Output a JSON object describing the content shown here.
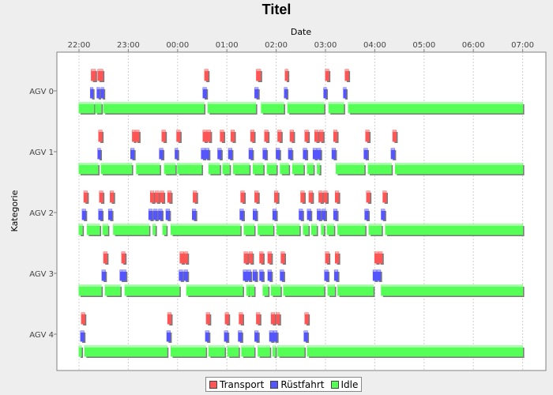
{
  "chart_data": {
    "type": "gantt",
    "title": "Titel",
    "xlabel": "Date",
    "ylabel": "Kategorie",
    "x_ticks": [
      "22:00",
      "23:00",
      "00:00",
      "01:00",
      "02:00",
      "03:00",
      "04:00",
      "05:00",
      "06:00",
      "07:00"
    ],
    "x_range": [
      "21:30",
      "07:30"
    ],
    "categories": [
      "AGV 0",
      "AGV 1",
      "AGV 2",
      "AGV 3",
      "AGV 4"
    ],
    "grid": true,
    "legend_position": "bottom",
    "series": [
      {
        "name": "Transport",
        "color": "#ff5555",
        "tasks": [
          {
            "category": "AGV 0",
            "intervals": [
              [
                "22:15",
                "22:20"
              ],
              [
                "22:23",
                "22:29"
              ],
              [
                "00:33",
                "00:37"
              ],
              [
                "01:36",
                "01:41"
              ],
              [
                "02:11",
                "02:14"
              ],
              [
                "03:00",
                "03:04"
              ],
              [
                "03:24",
                "03:28"
              ]
            ]
          },
          {
            "category": "AGV 1",
            "intervals": [
              [
                "22:24",
                "22:28"
              ],
              [
                "23:05",
                "23:08"
              ],
              [
                "23:09",
                "23:13"
              ],
              [
                "23:41",
                "23:45"
              ],
              [
                "23:59",
                "00:03"
              ],
              [
                "00:31",
                "00:35"
              ],
              [
                "00:36",
                "00:40"
              ],
              [
                "00:52",
                "00:56"
              ],
              [
                "01:05",
                "01:09"
              ],
              [
                "01:29",
                "01:33"
              ],
              [
                "01:46",
                "01:50"
              ],
              [
                "02:02",
                "02:06"
              ],
              [
                "02:17",
                "02:21"
              ],
              [
                "02:35",
                "02:39"
              ],
              [
                "02:47",
                "02:51"
              ],
              [
                "02:53",
                "02:57"
              ],
              [
                "03:10",
                "03:14"
              ],
              [
                "03:49",
                "03:53"
              ],
              [
                "04:22",
                "04:26"
              ]
            ]
          },
          {
            "category": "AGV 2",
            "intervals": [
              [
                "22:06",
                "22:10"
              ],
              [
                "22:25",
                "22:29"
              ],
              [
                "22:38",
                "22:42"
              ],
              [
                "23:27",
                "23:31"
              ],
              [
                "23:33",
                "23:37"
              ],
              [
                "23:39",
                "23:43"
              ],
              [
                "23:48",
                "23:52"
              ],
              [
                "00:19",
                "00:23"
              ],
              [
                "01:17",
                "01:21"
              ],
              [
                "01:34",
                "01:38"
              ],
              [
                "01:58",
                "02:02"
              ],
              [
                "02:30",
                "02:34"
              ],
              [
                "02:40",
                "02:44"
              ],
              [
                "02:52",
                "02:56"
              ],
              [
                "02:58",
                "03:02"
              ],
              [
                "03:12",
                "03:16"
              ],
              [
                "03:50",
                "03:54"
              ],
              [
                "04:10",
                "04:14"
              ]
            ]
          },
          {
            "category": "AGV 3",
            "intervals": [
              [
                "22:30",
                "22:34"
              ],
              [
                "22:52",
                "22:56"
              ],
              [
                "00:03",
                "00:07"
              ],
              [
                "00:08",
                "00:12"
              ],
              [
                "01:21",
                "01:25"
              ],
              [
                "01:27",
                "01:31"
              ],
              [
                "01:40",
                "01:44"
              ],
              [
                "01:50",
                "01:54"
              ],
              [
                "02:06",
                "02:10"
              ],
              [
                "03:00",
                "03:04"
              ],
              [
                "03:12",
                "03:16"
              ],
              [
                "04:00",
                "04:04"
              ],
              [
                "04:05",
                "04:09"
              ]
            ]
          },
          {
            "category": "AGV 4",
            "intervals": [
              [
                "22:03",
                "22:07"
              ],
              [
                "23:48",
                "23:52"
              ],
              [
                "00:35",
                "00:39"
              ],
              [
                "00:58",
                "01:02"
              ],
              [
                "01:15",
                "01:19"
              ],
              [
                "01:36",
                "01:40"
              ],
              [
                "01:54",
                "01:58"
              ],
              [
                "02:00",
                "02:04"
              ],
              [
                "02:35",
                "02:39"
              ]
            ]
          }
        ]
      },
      {
        "name": "Rüstfahrt",
        "color": "#5555ff",
        "tasks": [
          {
            "category": "AGV 0",
            "intervals": [
              [
                "22:14",
                "22:17"
              ],
              [
                "22:22",
                "22:25"
              ],
              [
                "22:27",
                "22:30"
              ],
              [
                "00:31",
                "00:35"
              ],
              [
                "01:34",
                "01:38"
              ],
              [
                "02:10",
                "02:13"
              ],
              [
                "02:58",
                "03:01"
              ],
              [
                "03:22",
                "03:25"
              ]
            ]
          },
          {
            "category": "AGV 1",
            "intervals": [
              [
                "22:23",
                "22:26"
              ],
              [
                "23:03",
                "23:07"
              ],
              [
                "23:38",
                "23:42"
              ],
              [
                "23:57",
                "24:00"
              ],
              [
                "00:29",
                "00:33"
              ],
              [
                "00:34",
                "00:38"
              ],
              [
                "00:49",
                "00:53"
              ],
              [
                "01:02",
                "01:06"
              ],
              [
                "01:27",
                "01:31"
              ],
              [
                "01:44",
                "01:48"
              ],
              [
                "02:00",
                "02:04"
              ],
              [
                "02:15",
                "02:19"
              ],
              [
                "02:33",
                "02:37"
              ],
              [
                "02:45",
                "02:49"
              ],
              [
                "02:50",
                "02:54"
              ],
              [
                "03:08",
                "03:12"
              ],
              [
                "03:47",
                "03:51"
              ],
              [
                "04:20",
                "04:24"
              ]
            ]
          },
          {
            "category": "AGV 2",
            "intervals": [
              [
                "22:04",
                "22:08"
              ],
              [
                "22:24",
                "22:28"
              ],
              [
                "22:36",
                "22:40"
              ],
              [
                "23:25",
                "23:29"
              ],
              [
                "23:31",
                "23:35"
              ],
              [
                "23:37",
                "23:41"
              ],
              [
                "23:46",
                "23:50"
              ],
              [
                "00:18",
                "00:22"
              ],
              [
                "01:16",
                "01:20"
              ],
              [
                "01:32",
                "01:36"
              ],
              [
                "01:56",
                "02:00"
              ],
              [
                "02:28",
                "02:32"
              ],
              [
                "02:38",
                "02:42"
              ],
              [
                "02:50",
                "02:54"
              ],
              [
                "02:56",
                "03:00"
              ],
              [
                "03:10",
                "03:14"
              ],
              [
                "03:48",
                "03:52"
              ],
              [
                "04:08",
                "04:12"
              ]
            ]
          },
          {
            "category": "AGV 3",
            "intervals": [
              [
                "22:28",
                "22:32"
              ],
              [
                "22:50",
                "22:54"
              ],
              [
                "22:53",
                "22:57"
              ],
              [
                "00:02",
                "00:06"
              ],
              [
                "00:08",
                "00:12"
              ],
              [
                "01:20",
                "01:24"
              ],
              [
                "01:25",
                "01:29"
              ],
              [
                "01:32",
                "01:36"
              ],
              [
                "01:40",
                "01:44"
              ],
              [
                "01:50",
                "01:54"
              ],
              [
                "02:05",
                "02:09"
              ],
              [
                "02:59",
                "03:03"
              ],
              [
                "03:11",
                "03:15"
              ],
              [
                "03:58",
                "04:02"
              ],
              [
                "04:03",
                "04:07"
              ]
            ]
          },
          {
            "category": "AGV 4",
            "intervals": [
              [
                "22:02",
                "22:06"
              ],
              [
                "23:47",
                "23:51"
              ],
              [
                "00:34",
                "00:38"
              ],
              [
                "00:57",
                "01:01"
              ],
              [
                "01:14",
                "01:18"
              ],
              [
                "01:34",
                "01:38"
              ],
              [
                "01:52",
                "01:56"
              ],
              [
                "01:57",
                "02:01"
              ],
              [
                "02:34",
                "02:38"
              ]
            ]
          }
        ]
      },
      {
        "name": "Idle",
        "color": "#55ff55",
        "tasks": [
          {
            "category": "AGV 0",
            "intervals": [
              [
                "22:00",
                "22:18"
              ],
              [
                "22:20",
                "22:27"
              ],
              [
                "22:30",
                "00:32"
              ],
              [
                "00:37",
                "01:35"
              ],
              [
                "01:42",
                "02:09"
              ],
              [
                "02:14",
                "02:58"
              ],
              [
                "03:04",
                "03:22"
              ],
              [
                "03:28",
                "07:00"
              ]
            ]
          },
          {
            "category": "AGV 1",
            "intervals": [
              [
                "22:00",
                "22:23"
              ],
              [
                "22:27",
                "23:04"
              ],
              [
                "23:10",
                "23:38"
              ],
              [
                "23:44",
                "23:57"
              ],
              [
                "24:00",
                "00:29"
              ],
              [
                "00:38",
                "00:51"
              ],
              [
                "00:55",
                "01:03"
              ],
              [
                "01:08",
                "01:27"
              ],
              [
                "01:32",
                "01:44"
              ],
              [
                "01:49",
                "02:00"
              ],
              [
                "02:05",
                "02:15"
              ],
              [
                "02:20",
                "02:33"
              ],
              [
                "02:38",
                "02:45"
              ],
              [
                "02:50",
                "02:53"
              ],
              [
                "03:13",
                "03:47"
              ],
              [
                "03:52",
                "04:20"
              ],
              [
                "04:25",
                "07:00"
              ]
            ]
          },
          {
            "category": "AGV 2",
            "intervals": [
              [
                "22:00",
                "22:04"
              ],
              [
                "22:10",
                "22:25"
              ],
              [
                "22:29",
                "22:35"
              ],
              [
                "22:42",
                "23:25"
              ],
              [
                "23:30",
                "23:31"
              ],
              [
                "23:42",
                "23:46"
              ],
              [
                "23:52",
                "01:16"
              ],
              [
                "01:21",
                "01:33"
              ],
              [
                "01:38",
                "01:56"
              ],
              [
                "02:01",
                "02:28"
              ],
              [
                "02:33",
                "02:39"
              ],
              [
                "02:43",
                "02:49"
              ],
              [
                "02:55",
                "02:56"
              ],
              [
                "03:02",
                "03:10"
              ],
              [
                "03:15",
                "03:48"
              ],
              [
                "03:53",
                "04:08"
              ],
              [
                "04:13",
                "07:00"
              ]
            ]
          },
          {
            "category": "AGV 3",
            "intervals": [
              [
                "22:00",
                "22:27"
              ],
              [
                "22:32",
                "22:50"
              ],
              [
                "22:56",
                "00:02"
              ],
              [
                "00:11",
                "01:19"
              ],
              [
                "01:24",
                "01:25"
              ],
              [
                "01:28",
                "01:33"
              ],
              [
                "01:44",
                "01:50"
              ],
              [
                "01:54",
                "02:05"
              ],
              [
                "02:09",
                "02:58"
              ],
              [
                "03:03",
                "03:11"
              ],
              [
                "03:15",
                "03:58"
              ],
              [
                "04:08",
                "07:00"
              ]
            ]
          },
          {
            "category": "AGV 4",
            "intervals": [
              [
                "22:00",
                "22:02"
              ],
              [
                "22:07",
                "23:47"
              ],
              [
                "23:52",
                "00:34"
              ],
              [
                "00:38",
                "00:57"
              ],
              [
                "01:01",
                "01:14"
              ],
              [
                "01:18",
                "01:33"
              ],
              [
                "01:38",
                "01:52"
              ],
              [
                "01:56",
                "01:57"
              ],
              [
                "02:02",
                "02:34"
              ],
              [
                "02:38",
                "07:00"
              ]
            ]
          }
        ]
      }
    ]
  }
}
